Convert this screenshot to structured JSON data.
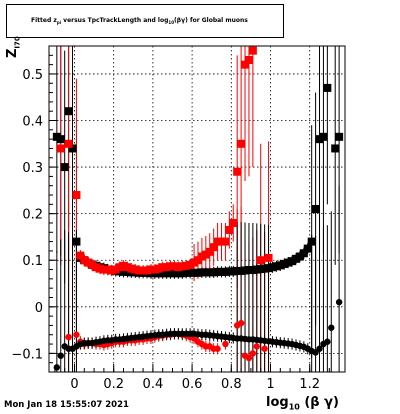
{
  "chart_data": {
    "type": "scatter",
    "title": "Fitted z_{pi} versus TpcTrackLength and log_{10}(#beta#gamma) for Global muons",
    "title_main": "Fitted z",
    "title_sub1": "pi",
    "title_mid": " versus TpcTrackLength and log",
    "title_sub2": "10",
    "title_end": "(βγ) for Global muons",
    "xlabel_main": "log",
    "xlabel_sub": "10",
    "xlabel_end": " (β γ)",
    "ylabel_main": "Z",
    "ylabel_sub": "I70",
    "xlim": [
      -0.13,
      1.38
    ],
    "ylim": [
      -0.14,
      0.56
    ],
    "x_ticks": [
      0,
      0.2,
      0.4,
      0.6,
      0.8,
      1,
      1.2
    ],
    "x_tick_labels": [
      "0",
      "0.2",
      "0.4",
      "0.6",
      "0.8",
      "1",
      "1.2"
    ],
    "y_ticks": [
      -0.1,
      0,
      0.1,
      0.2,
      0.3,
      0.4,
      0.5
    ],
    "y_tick_labels": [
      "−0.1",
      "0",
      "0.1",
      "0.2",
      "0.3",
      "0.4",
      "0.5"
    ],
    "grid": true,
    "series": [
      {
        "color": "#000000",
        "marker": "square",
        "points": [
          [
            -0.09,
            0.365
          ],
          [
            -0.07,
            0.36
          ],
          [
            -0.05,
            0.3
          ],
          [
            -0.03,
            0.42
          ],
          [
            -0.01,
            0.34
          ],
          [
            0.01,
            0.14
          ],
          [
            0.03,
            0.105
          ],
          [
            0.05,
            0.1
          ],
          [
            0.07,
            0.095
          ],
          [
            0.09,
            0.09
          ],
          [
            0.11,
            0.088
          ],
          [
            0.13,
            0.085
          ],
          [
            0.15,
            0.083
          ],
          [
            0.17,
            0.08
          ],
          [
            0.19,
            0.078
          ],
          [
            0.21,
            0.077
          ],
          [
            0.23,
            0.076
          ],
          [
            0.25,
            0.075
          ],
          [
            0.27,
            0.075
          ],
          [
            0.29,
            0.074
          ],
          [
            0.31,
            0.074
          ],
          [
            0.33,
            0.073
          ],
          [
            0.35,
            0.073
          ],
          [
            0.37,
            0.073
          ],
          [
            0.39,
            0.072
          ],
          [
            0.41,
            0.072
          ],
          [
            0.43,
            0.072
          ],
          [
            0.45,
            0.072
          ],
          [
            0.47,
            0.072
          ],
          [
            0.49,
            0.072
          ],
          [
            0.51,
            0.072
          ],
          [
            0.53,
            0.072
          ],
          [
            0.55,
            0.072
          ],
          [
            0.57,
            0.073
          ],
          [
            0.59,
            0.073
          ],
          [
            0.61,
            0.073
          ],
          [
            0.63,
            0.073
          ],
          [
            0.65,
            0.074
          ],
          [
            0.67,
            0.074
          ],
          [
            0.69,
            0.074
          ],
          [
            0.71,
            0.074
          ],
          [
            0.73,
            0.075
          ],
          [
            0.75,
            0.075
          ],
          [
            0.77,
            0.075
          ],
          [
            0.79,
            0.076
          ],
          [
            0.81,
            0.076
          ],
          [
            0.83,
            0.077
          ],
          [
            0.85,
            0.077
          ],
          [
            0.87,
            0.078
          ],
          [
            0.89,
            0.079
          ],
          [
            0.91,
            0.079
          ],
          [
            0.93,
            0.08
          ],
          [
            0.95,
            0.081
          ],
          [
            0.97,
            0.082
          ],
          [
            0.99,
            0.083
          ],
          [
            1.01,
            0.085
          ],
          [
            1.03,
            0.087
          ],
          [
            1.05,
            0.089
          ],
          [
            1.07,
            0.092
          ],
          [
            1.09,
            0.095
          ],
          [
            1.11,
            0.098
          ],
          [
            1.13,
            0.103
          ],
          [
            1.15,
            0.108
          ],
          [
            1.17,
            0.115
          ],
          [
            1.19,
            0.125
          ],
          [
            1.21,
            0.14
          ],
          [
            1.23,
            0.21
          ],
          [
            1.25,
            0.36
          ],
          [
            1.27,
            0.365
          ],
          [
            1.29,
            0.47
          ],
          [
            1.33,
            0.34
          ],
          [
            1.35,
            0.365
          ]
        ]
      },
      {
        "color": "#ff0000",
        "marker": "square",
        "points": [
          [
            -0.07,
            0.34
          ],
          [
            -0.03,
            0.35
          ],
          [
            0.01,
            0.24
          ],
          [
            0.03,
            0.11
          ],
          [
            0.05,
            0.1
          ],
          [
            0.07,
            0.095
          ],
          [
            0.09,
            0.09
          ],
          [
            0.11,
            0.085
          ],
          [
            0.13,
            0.082
          ],
          [
            0.15,
            0.08
          ],
          [
            0.17,
            0.08
          ],
          [
            0.19,
            0.078
          ],
          [
            0.21,
            0.08
          ],
          [
            0.23,
            0.085
          ],
          [
            0.25,
            0.088
          ],
          [
            0.27,
            0.085
          ],
          [
            0.29,
            0.082
          ],
          [
            0.31,
            0.08
          ],
          [
            0.33,
            0.078
          ],
          [
            0.35,
            0.078
          ],
          [
            0.37,
            0.078
          ],
          [
            0.39,
            0.08
          ],
          [
            0.41,
            0.08
          ],
          [
            0.43,
            0.082
          ],
          [
            0.45,
            0.085
          ],
          [
            0.47,
            0.085
          ],
          [
            0.49,
            0.087
          ],
          [
            0.51,
            0.087
          ],
          [
            0.53,
            0.085
          ],
          [
            0.55,
            0.087
          ],
          [
            0.57,
            0.088
          ],
          [
            0.59,
            0.09
          ],
          [
            0.61,
            0.095
          ],
          [
            0.63,
            0.1
          ],
          [
            0.65,
            0.108
          ],
          [
            0.67,
            0.112
          ],
          [
            0.69,
            0.118
          ],
          [
            0.71,
            0.128
          ],
          [
            0.73,
            0.14
          ],
          [
            0.75,
            0.14
          ],
          [
            0.77,
            0.14
          ],
          [
            0.79,
            0.165
          ],
          [
            0.81,
            0.18
          ],
          [
            0.83,
            0.29
          ],
          [
            0.85,
            0.35
          ],
          [
            0.87,
            0.52
          ],
          [
            0.89,
            0.53
          ],
          [
            0.91,
            0.55
          ],
          [
            0.95,
            0.1
          ],
          [
            0.99,
            0.105
          ]
        ]
      },
      {
        "color": "#ff0000",
        "marker": "circle",
        "points": [
          [
            -0.03,
            -0.065
          ],
          [
            0.01,
            -0.06
          ],
          [
            0.03,
            -0.075
          ],
          [
            0.05,
            -0.08
          ],
          [
            0.07,
            -0.078
          ],
          [
            0.09,
            -0.078
          ],
          [
            0.11,
            -0.08
          ],
          [
            0.13,
            -0.08
          ],
          [
            0.15,
            -0.082
          ],
          [
            0.17,
            -0.08
          ],
          [
            0.19,
            -0.078
          ],
          [
            0.21,
            -0.075
          ],
          [
            0.23,
            -0.075
          ],
          [
            0.25,
            -0.075
          ],
          [
            0.27,
            -0.072
          ],
          [
            0.29,
            -0.072
          ],
          [
            0.31,
            -0.072
          ],
          [
            0.33,
            -0.07
          ],
          [
            0.35,
            -0.07
          ],
          [
            0.37,
            -0.068
          ],
          [
            0.39,
            -0.068
          ],
          [
            0.41,
            -0.065
          ],
          [
            0.43,
            -0.063
          ],
          [
            0.45,
            -0.062
          ],
          [
            0.47,
            -0.06
          ],
          [
            0.49,
            -0.06
          ],
          [
            0.51,
            -0.058
          ],
          [
            0.53,
            -0.058
          ],
          [
            0.55,
            -0.06
          ],
          [
            0.57,
            -0.062
          ],
          [
            0.59,
            -0.065
          ],
          [
            0.61,
            -0.068
          ],
          [
            0.63,
            -0.075
          ],
          [
            0.65,
            -0.08
          ],
          [
            0.67,
            -0.085
          ],
          [
            0.69,
            -0.085
          ],
          [
            0.71,
            -0.09
          ],
          [
            0.73,
            -0.09
          ],
          [
            0.77,
            -0.08
          ],
          [
            0.83,
            -0.04
          ],
          [
            0.85,
            -0.035
          ],
          [
            0.87,
            -0.105
          ],
          [
            0.89,
            -0.11
          ],
          [
            0.91,
            -0.1
          ],
          [
            0.93,
            -0.085
          ],
          [
            0.97,
            -0.09
          ]
        ]
      },
      {
        "color": "#000000",
        "marker": "circle",
        "points": [
          [
            -0.09,
            -0.13
          ],
          [
            -0.07,
            -0.105
          ],
          [
            -0.05,
            -0.085
          ],
          [
            -0.03,
            -0.09
          ],
          [
            -0.01,
            -0.09
          ],
          [
            0.01,
            -0.085
          ],
          [
            0.03,
            -0.08
          ],
          [
            0.05,
            -0.078
          ],
          [
            0.07,
            -0.078
          ],
          [
            0.09,
            -0.078
          ],
          [
            0.11,
            -0.076
          ],
          [
            0.13,
            -0.075
          ],
          [
            0.15,
            -0.073
          ],
          [
            0.17,
            -0.072
          ],
          [
            0.19,
            -0.072
          ],
          [
            0.21,
            -0.07
          ],
          [
            0.23,
            -0.07
          ],
          [
            0.25,
            -0.069
          ],
          [
            0.27,
            -0.068
          ],
          [
            0.29,
            -0.067
          ],
          [
            0.31,
            -0.066
          ],
          [
            0.33,
            -0.065
          ],
          [
            0.35,
            -0.064
          ],
          [
            0.37,
            -0.063
          ],
          [
            0.39,
            -0.062
          ],
          [
            0.41,
            -0.061
          ],
          [
            0.43,
            -0.06
          ],
          [
            0.45,
            -0.06
          ],
          [
            0.47,
            -0.059
          ],
          [
            0.49,
            -0.058
          ],
          [
            0.51,
            -0.058
          ],
          [
            0.53,
            -0.058
          ],
          [
            0.55,
            -0.058
          ],
          [
            0.57,
            -0.058
          ],
          [
            0.59,
            -0.058
          ],
          [
            0.61,
            -0.058
          ],
          [
            0.63,
            -0.059
          ],
          [
            0.65,
            -0.06
          ],
          [
            0.67,
            -0.06
          ],
          [
            0.69,
            -0.061
          ],
          [
            0.71,
            -0.062
          ],
          [
            0.73,
            -0.063
          ],
          [
            0.75,
            -0.064
          ],
          [
            0.77,
            -0.065
          ],
          [
            0.79,
            -0.066
          ],
          [
            0.81,
            -0.067
          ],
          [
            0.83,
            -0.068
          ],
          [
            0.85,
            -0.068
          ],
          [
            0.87,
            -0.069
          ],
          [
            0.89,
            -0.07
          ],
          [
            0.91,
            -0.07
          ],
          [
            0.93,
            -0.071
          ],
          [
            0.95,
            -0.072
          ],
          [
            0.97,
            -0.073
          ],
          [
            0.99,
            -0.074
          ],
          [
            1.01,
            -0.075
          ],
          [
            1.03,
            -0.076
          ],
          [
            1.05,
            -0.077
          ],
          [
            1.07,
            -0.078
          ],
          [
            1.09,
            -0.079
          ],
          [
            1.11,
            -0.08
          ],
          [
            1.13,
            -0.082
          ],
          [
            1.15,
            -0.084
          ],
          [
            1.17,
            -0.086
          ],
          [
            1.19,
            -0.09
          ],
          [
            1.21,
            -0.095
          ],
          [
            1.23,
            -0.098
          ],
          [
            1.25,
            -0.09
          ],
          [
            1.27,
            -0.08
          ],
          [
            1.29,
            -0.075
          ],
          [
            1.31,
            -0.045
          ],
          [
            1.35,
            0.01
          ]
        ]
      }
    ]
  },
  "footer": {
    "timestamp": "Mon Jan 18 15:55:07 2021"
  }
}
